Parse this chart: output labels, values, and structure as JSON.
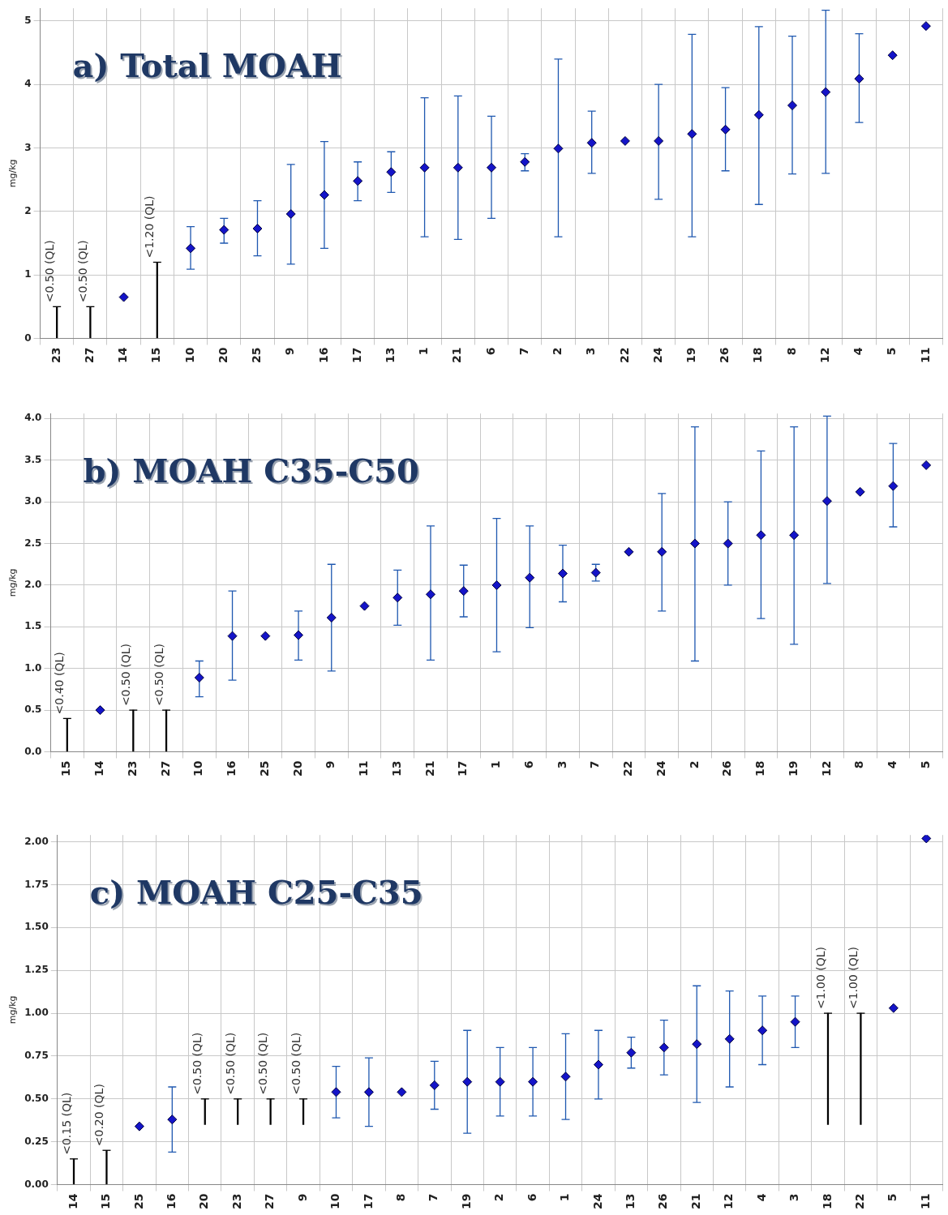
{
  "chart_data": [
    {
      "type": "scatter",
      "title": "a) Total MOAH",
      "ylabel": "mg/kg",
      "categories": [
        "23",
        "27",
        "14",
        "15",
        "10",
        "20",
        "25",
        "9",
        "16",
        "17",
        "13",
        "1",
        "21",
        "6",
        "7",
        "2",
        "3",
        "22",
        "24",
        "19",
        "26",
        "18",
        "8",
        "12",
        "4",
        "5",
        "11"
      ],
      "ylim": [
        0,
        5.2
      ],
      "yticks": [
        0,
        1,
        2,
        3,
        4,
        5
      ],
      "grid": true,
      "legend": false,
      "marker": "diamond",
      "series": [
        {
          "color": "#1414c8",
          "values": [
            null,
            null,
            0.65,
            null,
            1.42,
            1.71,
            1.73,
            1.96,
            2.26,
            2.48,
            2.62,
            2.69,
            2.69,
            2.69,
            2.78,
            2.99,
            3.08,
            3.11,
            3.11,
            3.22,
            3.29,
            3.52,
            3.67,
            3.88,
            4.09,
            4.46,
            4.92
          ],
          "errors": [
            null,
            null,
            null,
            null,
            [
              1.09,
              1.76
            ],
            [
              1.5,
              1.89
            ],
            [
              1.3,
              2.17
            ],
            [
              1.17,
              2.74
            ],
            [
              1.42,
              3.1
            ],
            [
              2.17,
              2.78
            ],
            [
              2.3,
              2.94
            ],
            [
              1.6,
              3.79
            ],
            [
              1.56,
              3.82
            ],
            [
              1.89,
              3.5
            ],
            [
              2.64,
              2.91
            ],
            [
              1.6,
              4.4
            ],
            [
              2.6,
              3.58
            ],
            null,
            [
              2.19,
              4.0
            ],
            [
              1.6,
              4.79
            ],
            [
              2.64,
              3.95
            ],
            [
              2.11,
              4.91
            ],
            [
              2.59,
              4.76
            ],
            [
              2.6,
              5.17
            ],
            [
              3.4,
              4.8
            ],
            null,
            null
          ]
        },
        {
          "type": "bar",
          "color": "#000000",
          "values": [
            0.5,
            0.5,
            null,
            1.2,
            null,
            null,
            null,
            null,
            null,
            null,
            null,
            null,
            null,
            null,
            null,
            null,
            null,
            null,
            null,
            null,
            null,
            null,
            null,
            null,
            null,
            null,
            null
          ],
          "value_labels": [
            "<0.50 (QL)",
            "<0.50 (QL)",
            null,
            "<1.20 (QL)",
            null,
            null,
            null,
            null,
            null,
            null,
            null,
            null,
            null,
            null,
            null,
            null,
            null,
            null,
            null,
            null,
            null,
            null,
            null,
            null,
            null,
            null,
            null
          ]
        }
      ]
    },
    {
      "type": "scatter",
      "title": "b) MOAH C35-C50",
      "ylabel": "mg/kg",
      "categories": [
        "15",
        "14",
        "23",
        "27",
        "10",
        "16",
        "25",
        "20",
        "9",
        "11",
        "13",
        "21",
        "17",
        "1",
        "6",
        "3",
        "7",
        "22",
        "24",
        "2",
        "26",
        "18",
        "19",
        "12",
        "8",
        "4",
        "5"
      ],
      "ylim": [
        0,
        4.06
      ],
      "yticks": [
        {
          "value": 0,
          "label": "0.0"
        },
        0.5,
        {
          "value": 1,
          "label": "1.0"
        },
        1.5,
        {
          "value": 2,
          "label": "2.0"
        },
        2.5,
        {
          "value": 3,
          "label": "3.0"
        },
        3.5,
        {
          "value": 4,
          "label": "4.0"
        }
      ],
      "grid": true,
      "legend": false,
      "marker": "diamond",
      "series": [
        {
          "color": "#1414c8",
          "values": [
            null,
            0.5,
            null,
            null,
            0.89,
            1.39,
            1.39,
            1.4,
            1.61,
            1.75,
            1.85,
            1.89,
            1.93,
            2.0,
            2.09,
            2.14,
            2.15,
            2.4,
            2.4,
            2.5,
            2.5,
            2.6,
            2.6,
            3.01,
            3.12,
            3.19,
            3.44
          ],
          "errors": [
            null,
            null,
            null,
            null,
            [
              0.66,
              1.09
            ],
            [
              0.86,
              1.93
            ],
            null,
            [
              1.1,
              1.69
            ],
            [
              0.97,
              2.25
            ],
            null,
            [
              1.52,
              2.18
            ],
            [
              1.1,
              2.71
            ],
            [
              1.62,
              2.24
            ],
            [
              1.2,
              2.8
            ],
            [
              1.49,
              2.71
            ],
            [
              1.8,
              2.48
            ],
            [
              2.05,
              2.25
            ],
            null,
            [
              1.69,
              3.1
            ],
            [
              1.09,
              3.9
            ],
            [
              2.0,
              3.0
            ],
            [
              1.6,
              3.61
            ],
            [
              1.29,
              3.9
            ],
            [
              2.02,
              4.03
            ],
            null,
            [
              2.7,
              3.7
            ],
            null
          ]
        },
        {
          "type": "bar",
          "color": "#000000",
          "values": [
            0.4,
            null,
            0.5,
            0.5,
            null,
            null,
            null,
            null,
            null,
            null,
            null,
            null,
            null,
            null,
            null,
            null,
            null,
            null,
            null,
            null,
            null,
            null,
            null,
            null,
            null,
            null,
            null
          ],
          "value_labels": [
            "<0.40 (QL)",
            null,
            "<0.50 (QL)",
            "<0.50 (QL)",
            null,
            null,
            null,
            null,
            null,
            null,
            null,
            null,
            null,
            null,
            null,
            null,
            null,
            null,
            null,
            null,
            null,
            null,
            null,
            null,
            null,
            null,
            null
          ]
        }
      ]
    },
    {
      "type": "scatter",
      "title": "c) MOAH C25-C35",
      "ylabel": "mg/kg",
      "categories": [
        "14",
        "15",
        "25",
        "16",
        "20",
        "23",
        "27",
        "9",
        "10",
        "17",
        "8",
        "7",
        "19",
        "2",
        "6",
        "1",
        "24",
        "13",
        "26",
        "21",
        "12",
        "4",
        "3",
        "18",
        "22",
        "5",
        "11"
      ],
      "ylim": [
        0,
        2.04
      ],
      "yticks": [
        {
          "value": 0,
          "label": "0.00"
        },
        0.25,
        {
          "value": 0.5,
          "label": "0.50"
        },
        0.75,
        {
          "value": 1,
          "label": "1.00"
        },
        1.25,
        {
          "value": 1.5,
          "label": "1.50"
        },
        1.75,
        {
          "value": 2,
          "label": "2.00"
        }
      ],
      "grid": true,
      "legend": false,
      "marker": "diamond",
      "series": [
        {
          "color": "#1414c8",
          "values": [
            null,
            null,
            0.34,
            0.38,
            null,
            null,
            null,
            null,
            0.54,
            0.54,
            0.54,
            0.58,
            0.6,
            0.6,
            0.6,
            0.63,
            0.7,
            0.77,
            0.8,
            0.82,
            0.85,
            0.9,
            0.95,
            null,
            null,
            1.03,
            2.02
          ],
          "errors": [
            null,
            null,
            null,
            [
              0.19,
              0.57
            ],
            null,
            null,
            null,
            null,
            [
              0.39,
              0.69
            ],
            [
              0.34,
              0.74
            ],
            null,
            [
              0.44,
              0.72
            ],
            [
              0.3,
              0.9
            ],
            [
              0.4,
              0.8
            ],
            [
              0.4,
              0.8
            ],
            [
              0.38,
              0.88
            ],
            [
              0.5,
              0.9
            ],
            [
              0.68,
              0.86
            ],
            [
              0.64,
              0.96
            ],
            [
              0.48,
              1.16
            ],
            [
              0.57,
              1.13
            ],
            [
              0.7,
              1.1
            ],
            [
              0.8,
              1.1
            ],
            null,
            null,
            null,
            null
          ]
        },
        {
          "type": "bar",
          "color": "#000000",
          "values": [
            0.15,
            0.2,
            null,
            null,
            0.15,
            0.15,
            0.15,
            0.15,
            null,
            null,
            null,
            null,
            null,
            null,
            null,
            null,
            null,
            null,
            null,
            null,
            null,
            null,
            null,
            0.65,
            0.65,
            null,
            null
          ],
          "base": [
            0,
            0,
            null,
            null,
            0.35,
            0.35,
            0.35,
            0.35,
            null,
            null,
            null,
            null,
            null,
            null,
            null,
            null,
            null,
            null,
            null,
            null,
            null,
            null,
            null,
            0.35,
            0.35,
            null,
            null
          ],
          "value_labels": [
            "<0.15 (QL)",
            "<0.20 (QL)",
            null,
            null,
            "<0.50 (QL)",
            "<0.50 (QL)",
            "<0.50 (QL)",
            "<0.50 (QL)",
            null,
            null,
            null,
            null,
            null,
            null,
            null,
            null,
            null,
            null,
            null,
            null,
            null,
            null,
            null,
            "<1.00 (QL)",
            "<1.00 (QL)",
            null,
            null
          ]
        }
      ]
    }
  ]
}
